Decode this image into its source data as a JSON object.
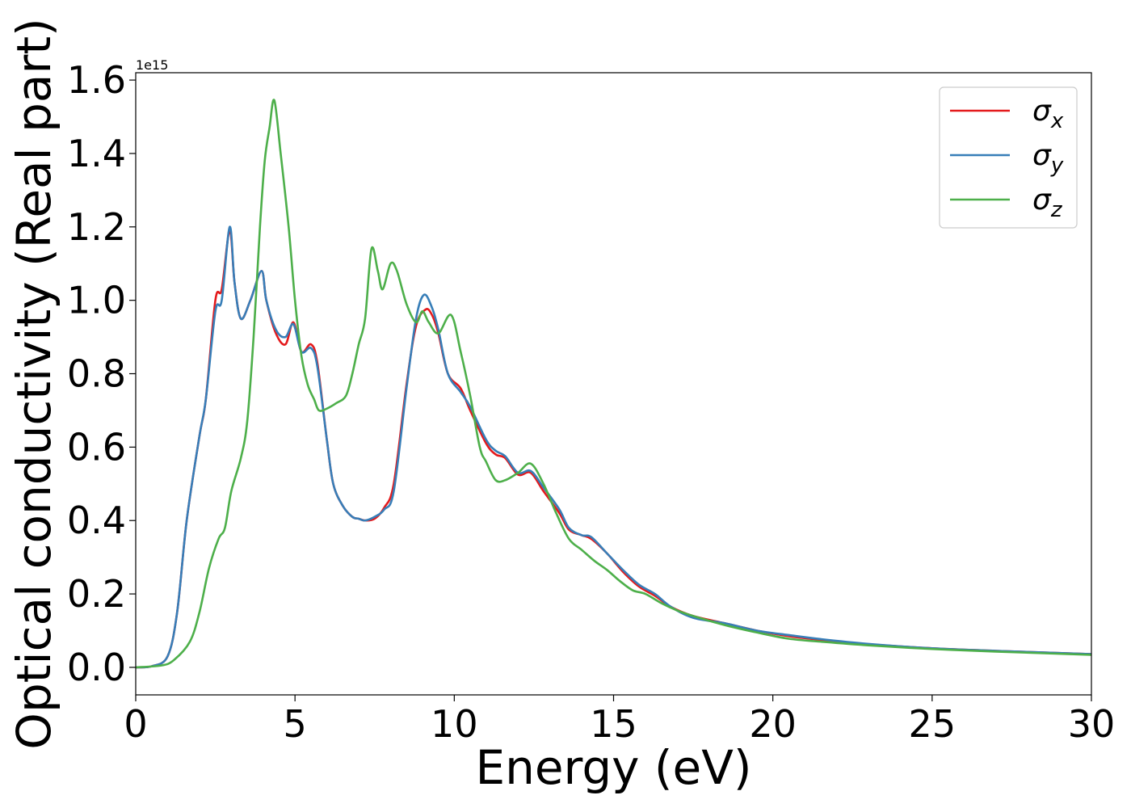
{
  "chart_data": {
    "type": "line",
    "title": "",
    "xlabel": "Energy (eV)",
    "ylabel": "Optical conductivity (Real part)",
    "y_offset_label": "1e15",
    "xlim": [
      0,
      30
    ],
    "ylim": [
      -0.075,
      1.62
    ],
    "x_ticks": [
      0,
      5,
      10,
      15,
      20,
      25,
      30
    ],
    "y_ticks": [
      0.0,
      0.2,
      0.4,
      0.6,
      0.8,
      1.0,
      1.2,
      1.4,
      1.6
    ],
    "x_tick_labels": [
      "0",
      "5",
      "10",
      "15",
      "20",
      "25",
      "30"
    ],
    "y_tick_labels": [
      "0.0",
      "0.2",
      "0.4",
      "0.6",
      "0.8",
      "1.0",
      "1.2",
      "1.4",
      "1.6"
    ],
    "grid": false,
    "legend_position": "top-right",
    "series": [
      {
        "name": "σx",
        "legend_base": "σ",
        "legend_sub": "x",
        "color": "#e41a1c",
        "points": [
          [
            0,
            0
          ],
          [
            0.5,
            0.003
          ],
          [
            1.0,
            0.03
          ],
          [
            1.3,
            0.15
          ],
          [
            1.6,
            0.4
          ],
          [
            2.0,
            0.63
          ],
          [
            2.2,
            0.73
          ],
          [
            2.5,
            1.0
          ],
          [
            2.7,
            1.03
          ],
          [
            2.95,
            1.19
          ],
          [
            3.1,
            1.05
          ],
          [
            3.3,
            0.95
          ],
          [
            3.6,
            1.0
          ],
          [
            3.95,
            1.08
          ],
          [
            4.1,
            1.0
          ],
          [
            4.4,
            0.91
          ],
          [
            4.7,
            0.88
          ],
          [
            4.95,
            0.94
          ],
          [
            5.2,
            0.86
          ],
          [
            5.5,
            0.88
          ],
          [
            5.7,
            0.83
          ],
          [
            6.0,
            0.62
          ],
          [
            6.2,
            0.5
          ],
          [
            6.5,
            0.44
          ],
          [
            6.8,
            0.41
          ],
          [
            7.0,
            0.405
          ],
          [
            7.2,
            0.4
          ],
          [
            7.5,
            0.405
          ],
          [
            7.8,
            0.435
          ],
          [
            8.1,
            0.5
          ],
          [
            8.5,
            0.77
          ],
          [
            8.8,
            0.93
          ],
          [
            9.1,
            0.975
          ],
          [
            9.3,
            0.96
          ],
          [
            9.5,
            0.91
          ],
          [
            9.8,
            0.8
          ],
          [
            10.2,
            0.76
          ],
          [
            10.5,
            0.7
          ],
          [
            11.0,
            0.61
          ],
          [
            11.3,
            0.58
          ],
          [
            11.6,
            0.57
          ],
          [
            12.0,
            0.525
          ],
          [
            12.4,
            0.53
          ],
          [
            12.8,
            0.48
          ],
          [
            13.3,
            0.42
          ],
          [
            13.6,
            0.375
          ],
          [
            14.0,
            0.36
          ],
          [
            14.3,
            0.35
          ],
          [
            14.8,
            0.31
          ],
          [
            15.3,
            0.26
          ],
          [
            15.8,
            0.22
          ],
          [
            16.3,
            0.195
          ],
          [
            16.8,
            0.165
          ],
          [
            17.5,
            0.14
          ],
          [
            18.5,
            0.12
          ],
          [
            19.5,
            0.1
          ],
          [
            20.5,
            0.085
          ],
          [
            21.5,
            0.075
          ],
          [
            23,
            0.063
          ],
          [
            25,
            0.052
          ],
          [
            27,
            0.045
          ],
          [
            30,
            0.036
          ]
        ]
      },
      {
        "name": "σy",
        "legend_base": "σ",
        "legend_sub": "y",
        "color": "#377eb8",
        "points": [
          [
            0,
            0
          ],
          [
            0.5,
            0.003
          ],
          [
            1.0,
            0.03
          ],
          [
            1.3,
            0.15
          ],
          [
            1.6,
            0.4
          ],
          [
            2.0,
            0.63
          ],
          [
            2.2,
            0.73
          ],
          [
            2.5,
            0.97
          ],
          [
            2.7,
            1.0
          ],
          [
            2.95,
            1.2
          ],
          [
            3.1,
            1.05
          ],
          [
            3.3,
            0.95
          ],
          [
            3.6,
            1.0
          ],
          [
            3.95,
            1.08
          ],
          [
            4.1,
            1.0
          ],
          [
            4.4,
            0.92
          ],
          [
            4.7,
            0.9
          ],
          [
            4.95,
            0.935
          ],
          [
            5.2,
            0.86
          ],
          [
            5.5,
            0.87
          ],
          [
            5.7,
            0.82
          ],
          [
            6.0,
            0.62
          ],
          [
            6.2,
            0.5
          ],
          [
            6.5,
            0.44
          ],
          [
            6.8,
            0.41
          ],
          [
            7.0,
            0.405
          ],
          [
            7.2,
            0.4
          ],
          [
            7.5,
            0.41
          ],
          [
            7.8,
            0.43
          ],
          [
            8.1,
            0.48
          ],
          [
            8.5,
            0.76
          ],
          [
            8.8,
            0.95
          ],
          [
            9.05,
            1.015
          ],
          [
            9.3,
            0.98
          ],
          [
            9.5,
            0.92
          ],
          [
            9.8,
            0.8
          ],
          [
            10.2,
            0.75
          ],
          [
            10.5,
            0.71
          ],
          [
            11.0,
            0.62
          ],
          [
            11.3,
            0.59
          ],
          [
            11.6,
            0.575
          ],
          [
            12.0,
            0.53
          ],
          [
            12.4,
            0.535
          ],
          [
            12.8,
            0.49
          ],
          [
            13.3,
            0.43
          ],
          [
            13.6,
            0.38
          ],
          [
            14.0,
            0.36
          ],
          [
            14.3,
            0.355
          ],
          [
            14.8,
            0.31
          ],
          [
            15.3,
            0.265
          ],
          [
            15.8,
            0.225
          ],
          [
            16.3,
            0.2
          ],
          [
            16.8,
            0.165
          ],
          [
            17.5,
            0.135
          ],
          [
            18.5,
            0.12
          ],
          [
            19.5,
            0.1
          ],
          [
            20.5,
            0.088
          ],
          [
            21.5,
            0.077
          ],
          [
            23,
            0.064
          ],
          [
            25,
            0.052
          ],
          [
            27,
            0.045
          ],
          [
            30,
            0.036
          ]
        ]
      },
      {
        "name": "σz",
        "legend_base": "σ",
        "legend_sub": "z",
        "color": "#4daf4a",
        "points": [
          [
            0,
            0
          ],
          [
            0.8,
            0.005
          ],
          [
            1.2,
            0.02
          ],
          [
            1.7,
            0.07
          ],
          [
            2.0,
            0.15
          ],
          [
            2.3,
            0.27
          ],
          [
            2.6,
            0.35
          ],
          [
            2.8,
            0.38
          ],
          [
            3.0,
            0.48
          ],
          [
            3.3,
            0.57
          ],
          [
            3.5,
            0.67
          ],
          [
            3.7,
            0.9
          ],
          [
            3.9,
            1.2
          ],
          [
            4.05,
            1.38
          ],
          [
            4.2,
            1.47
          ],
          [
            4.35,
            1.545
          ],
          [
            4.55,
            1.4
          ],
          [
            4.8,
            1.2
          ],
          [
            5.0,
            1.0
          ],
          [
            5.2,
            0.85
          ],
          [
            5.4,
            0.77
          ],
          [
            5.6,
            0.73
          ],
          [
            5.75,
            0.7
          ],
          [
            6.0,
            0.705
          ],
          [
            6.3,
            0.72
          ],
          [
            6.6,
            0.74
          ],
          [
            6.8,
            0.8
          ],
          [
            7.0,
            0.88
          ],
          [
            7.2,
            0.95
          ],
          [
            7.4,
            1.14
          ],
          [
            7.6,
            1.08
          ],
          [
            7.75,
            1.03
          ],
          [
            8.0,
            1.1
          ],
          [
            8.2,
            1.08
          ],
          [
            8.5,
            0.99
          ],
          [
            8.8,
            0.94
          ],
          [
            9.0,
            0.97
          ],
          [
            9.2,
            0.94
          ],
          [
            9.5,
            0.91
          ],
          [
            9.9,
            0.96
          ],
          [
            10.2,
            0.86
          ],
          [
            10.5,
            0.74
          ],
          [
            10.8,
            0.6
          ],
          [
            11.0,
            0.56
          ],
          [
            11.3,
            0.51
          ],
          [
            11.6,
            0.51
          ],
          [
            12.0,
            0.53
          ],
          [
            12.4,
            0.555
          ],
          [
            12.8,
            0.5
          ],
          [
            13.2,
            0.42
          ],
          [
            13.6,
            0.35
          ],
          [
            14.0,
            0.32
          ],
          [
            14.4,
            0.29
          ],
          [
            14.8,
            0.265
          ],
          [
            15.2,
            0.235
          ],
          [
            15.6,
            0.21
          ],
          [
            16.0,
            0.2
          ],
          [
            16.5,
            0.175
          ],
          [
            17.0,
            0.155
          ],
          [
            17.5,
            0.14
          ],
          [
            18.5,
            0.115
          ],
          [
            19.5,
            0.095
          ],
          [
            20.5,
            0.078
          ],
          [
            21.5,
            0.07
          ],
          [
            23,
            0.06
          ],
          [
            25,
            0.05
          ],
          [
            27,
            0.043
          ],
          [
            30,
            0.034
          ]
        ]
      }
    ]
  }
}
